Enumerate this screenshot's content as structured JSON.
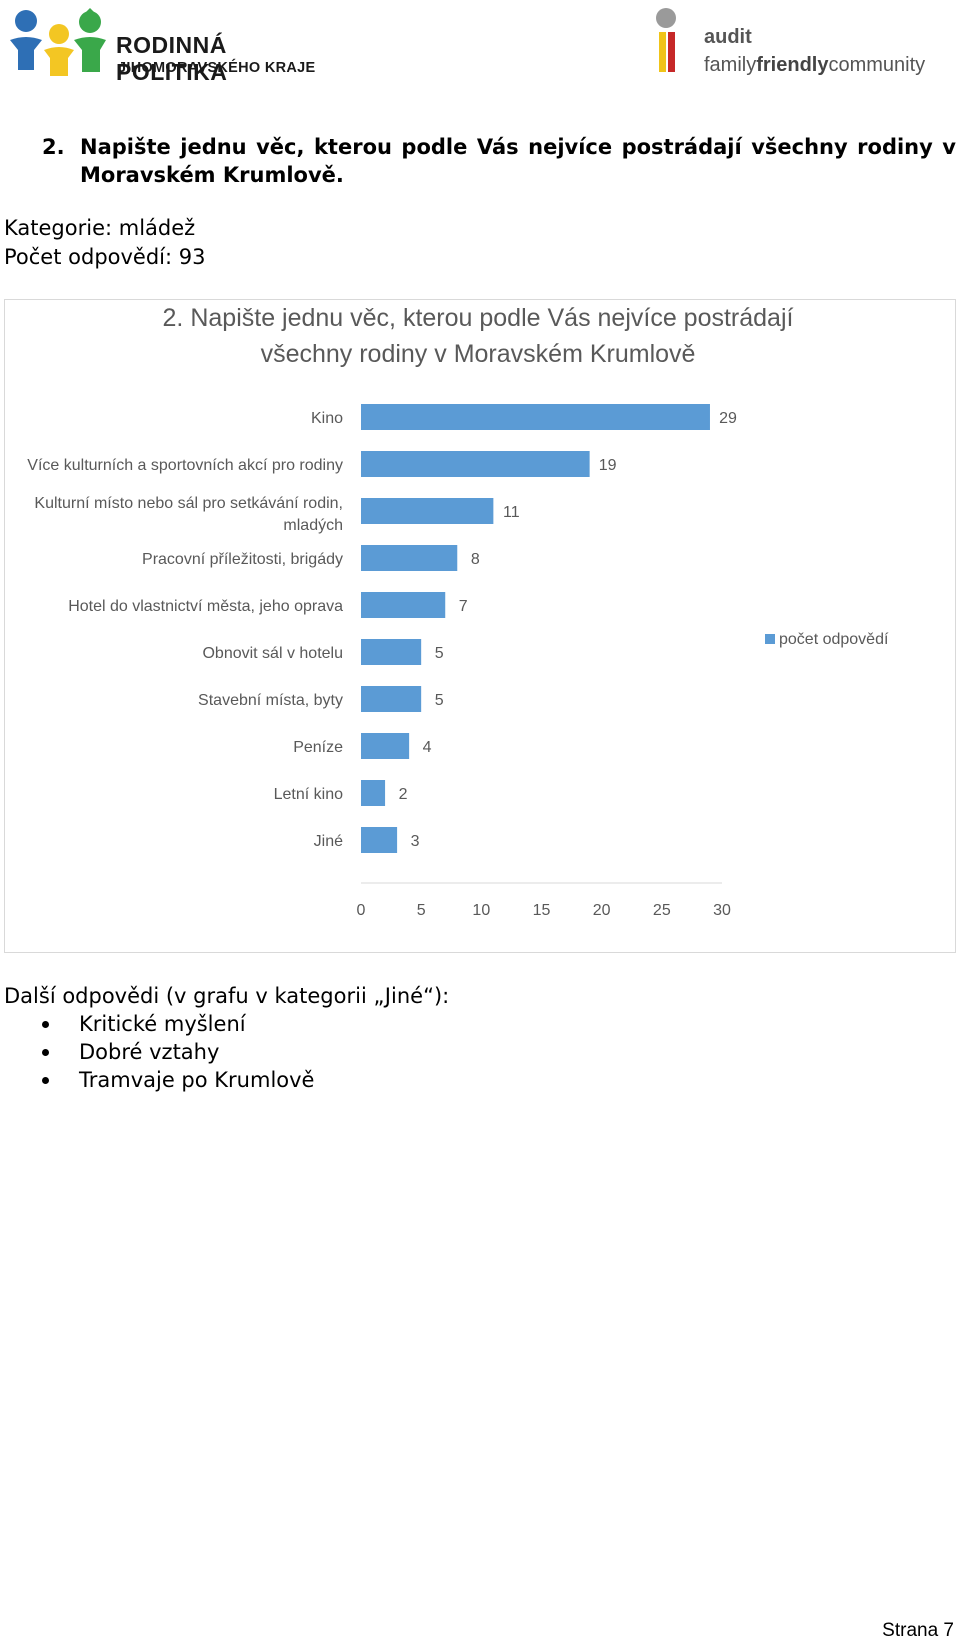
{
  "header": {
    "left_logo": {
      "line1": "RODINNÁ POLITIKA",
      "line2": "JIHOMORAVSKÉHO KRAJE",
      "icon": "family-figures-icon"
    },
    "right_logo": {
      "line1": "audit",
      "line2_a": "family",
      "line2_b": "friendly",
      "line2_c": "community",
      "icon": "audit-i-icon"
    }
  },
  "question": {
    "number": "2.",
    "text": "Napište jednu věc, kterou podle Vás nejvíce postrádají všechny rodiny v Moravském Krumlově."
  },
  "meta": {
    "category": "Kategorie: mládež",
    "responses": "Počet odpovědí: 93"
  },
  "chart_data": {
    "type": "bar",
    "orientation": "horizontal",
    "title_lines": [
      "2. Napište jednu věc, kterou podle Vás nejvíce postrádají",
      "všechny rodiny v Moravském Krumlově"
    ],
    "categories": [
      [
        "Kino"
      ],
      [
        "Více kulturních a sportovních akcí pro rodiny"
      ],
      [
        "Kulturní místo nebo sál pro setkávání rodin,",
        "mladých"
      ],
      [
        "Pracovní příležitosti, brigády"
      ],
      [
        "Hotel do vlastnictví města, jeho oprava"
      ],
      [
        "Obnovit sál v hotelu"
      ],
      [
        "Stavební místa, byty"
      ],
      [
        "Peníze"
      ],
      [
        "Letní kino"
      ],
      [
        "Jiné"
      ]
    ],
    "series": [
      {
        "name": "počet odpovědí",
        "values": [
          29,
          19,
          11,
          8,
          7,
          5,
          5,
          4,
          2,
          3
        ]
      }
    ],
    "xlim": [
      0,
      30
    ],
    "xticks": [
      0,
      5,
      10,
      15,
      20,
      25,
      30
    ],
    "bar_color": "#5B9BD5",
    "legend_position": "right",
    "grid": false
  },
  "notes": {
    "title": "Další odpovědi (v grafu v kategorii „Jiné“):",
    "items": [
      "Kritické myšlení",
      "Dobré vztahy",
      "Tramvaje po Krumlově"
    ]
  },
  "footer": {
    "page": "Strana 7"
  }
}
